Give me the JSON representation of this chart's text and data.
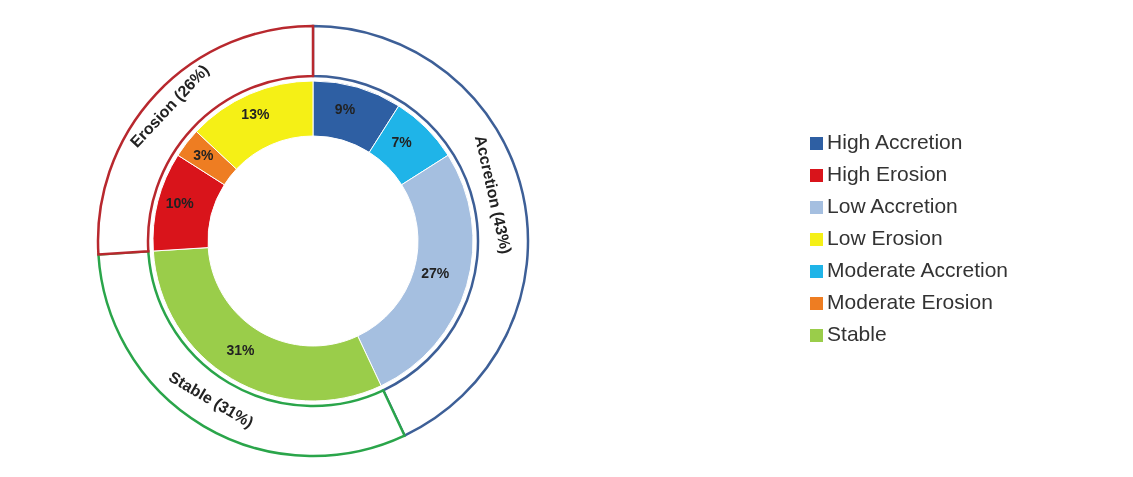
{
  "chart_data": [
    {
      "type": "donut",
      "legend": "right",
      "categories": [
        "High Accretion",
        "Moderate Accretion",
        "Low Accretion",
        "Stable",
        "High Erosion",
        "Moderate Erosion",
        "Low Erosion"
      ],
      "values": [
        9,
        7,
        27,
        31,
        10,
        3,
        13
      ],
      "colors": [
        "#2e5fa3",
        "#1fb4e8",
        "#a5bfe0",
        "#9acd4a",
        "#d9141b",
        "#ee7d22",
        "#f5f016"
      ],
      "value_labels": [
        "9%",
        "7%",
        "27%",
        "31%",
        "10%",
        "3%",
        "13%"
      ]
    },
    {
      "type": "donut",
      "categories": [
        "Accretion",
        "Stable",
        "Erosion"
      ],
      "values": [
        43,
        31,
        26
      ],
      "colors": [
        "#3d5f97",
        "#2aa54a",
        "#b8282e"
      ],
      "value_labels": [
        "(43%)",
        "(31%)",
        "(26%)"
      ]
    }
  ]
}
